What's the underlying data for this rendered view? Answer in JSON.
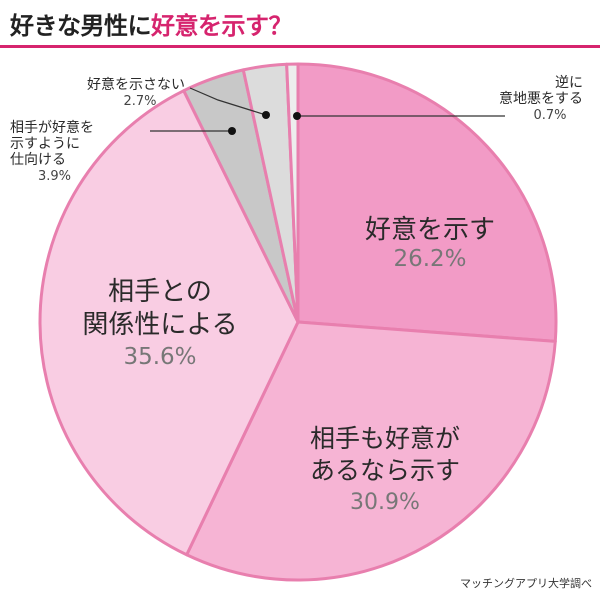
{
  "header": {
    "title_plain": "好きな男性に",
    "title_accent": "好意を示す？",
    "accent_color": "#d6246e"
  },
  "chart_data": {
    "type": "pie",
    "title": "好きな男性に好意を示す？",
    "start": "12 o'clock, clockwise",
    "slices": [
      {
        "label": "好意を示す",
        "value": 26.2,
        "value_text": "26.2%",
        "color": "#f29bc6",
        "label_position": "inside"
      },
      {
        "label": "相手も好意があるなら示す",
        "value": 30.9,
        "value_text": "30.9%",
        "color": "#f6b4d4",
        "label_position": "inside"
      },
      {
        "label": "相手との関係性による",
        "value": 35.6,
        "value_text": "35.6%",
        "color": "#f9cde3",
        "label_position": "inside"
      },
      {
        "label": "相手が好意を示すように仕向ける",
        "value": 3.9,
        "value_text": "3.9%",
        "color": "#c8c8c8",
        "label_position": "outside"
      },
      {
        "label": "好意を示さない",
        "value": 2.7,
        "value_text": "2.7%",
        "color": "#dcdcdc",
        "label_position": "outside"
      },
      {
        "label": "逆に意地悪をする",
        "value": 0.7,
        "value_text": "0.7%",
        "color": "#ededed",
        "label_position": "outside"
      }
    ],
    "border_color": "#e87fae"
  },
  "footer": {
    "credit": "マッチングアプリ大学調べ"
  }
}
